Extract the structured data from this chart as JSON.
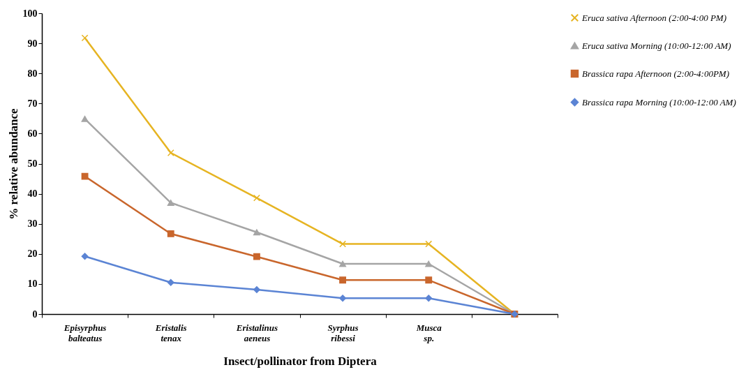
{
  "chart_data": {
    "type": "line",
    "xlabel": "Insect/pollinator from Diptera",
    "ylabel": "% relative abundance",
    "categories": [
      "Episyrphus balteatus",
      "Eristalis tenax",
      "Eristalinus aeneus",
      "Syrphus ribessi",
      "Musca sp.",
      null
    ],
    "ylim": [
      0,
      100
    ],
    "yticks": [
      0,
      10,
      20,
      30,
      40,
      50,
      60,
      70,
      80,
      90,
      100
    ],
    "grid": false,
    "legend": "right",
    "line_style": "solid",
    "series": [
      {
        "name": "Eruca sativa Afternoon (2:00-4:00 PM)",
        "color": "#e6b422",
        "marker": "cross",
        "values": [
          91.8,
          53.6,
          38.6,
          23.3,
          23.3,
          0
        ]
      },
      {
        "name": "Eruca sativa Morning (10:00-12:00 AM)",
        "color": "#a5a5a5",
        "marker": "triangle",
        "values": [
          64.9,
          37.0,
          27.2,
          16.7,
          16.7,
          0
        ]
      },
      {
        "name": "Brassica rapa  Afternoon (2:00-4:00PM)",
        "color": "#c9662c",
        "marker": "square",
        "values": [
          45.8,
          26.7,
          19.1,
          11.3,
          11.3,
          0
        ]
      },
      {
        "name": "Brassica rapa  Morning (10:00-12:00 AM)",
        "color": "#5b84d4",
        "marker": "diamond",
        "values": [
          19.2,
          10.5,
          8.1,
          5.3,
          5.3,
          0
        ]
      }
    ]
  }
}
